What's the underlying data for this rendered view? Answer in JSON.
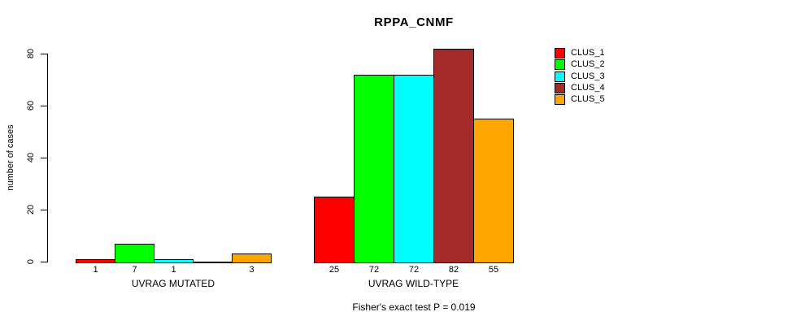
{
  "chart_data": {
    "type": "bar",
    "title": "RPPA_CNMF",
    "ylabel": "number of cases",
    "xlabel": "",
    "ylim": [
      0,
      80
    ],
    "yticks": [
      0,
      20,
      40,
      60,
      80
    ],
    "grid": false,
    "legend_position": "right",
    "series": [
      {
        "name": "CLUS_1",
        "color": "#FF0000"
      },
      {
        "name": "CLUS_2",
        "color": "#00FF00"
      },
      {
        "name": "CLUS_3",
        "color": "#00FFFF"
      },
      {
        "name": "CLUS_4",
        "color": "#A52A2A"
      },
      {
        "name": "CLUS_5",
        "color": "#FFA500"
      }
    ],
    "groups": [
      {
        "label": "UVRAG MUTATED",
        "values": [
          1,
          7,
          1,
          0,
          3
        ],
        "bar_labels": [
          "1",
          "7",
          "1",
          "",
          "3"
        ]
      },
      {
        "label": "UVRAG WILD-TYPE",
        "values": [
          25,
          72,
          72,
          82,
          55
        ],
        "bar_labels": [
          "25",
          "72",
          "72",
          "82",
          "55"
        ]
      }
    ],
    "footnote": "Fisher's exact test P = 0.019"
  }
}
